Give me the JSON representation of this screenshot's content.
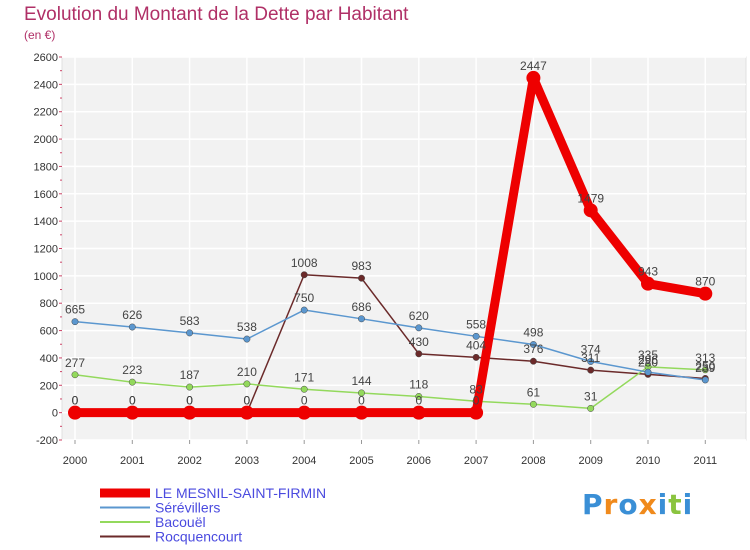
{
  "chart_data": {
    "type": "line",
    "title": "Evolution du Montant de la Dette par Habitant",
    "subtitle": "(en €)",
    "xlabel": "",
    "ylabel": "",
    "x": [
      "2000",
      "2001",
      "2002",
      "2003",
      "2004",
      "2005",
      "2006",
      "2007",
      "2008",
      "2009",
      "2010",
      "2011"
    ],
    "yticks": [
      -200,
      0,
      200,
      400,
      600,
      800,
      1000,
      1200,
      1400,
      1600,
      1800,
      2000,
      2200,
      2400,
      2600
    ],
    "ylim": [
      -200,
      2600
    ],
    "grid": true,
    "legend_position": "bottom-left",
    "series": [
      {
        "name": "LE MESNIL-SAINT-FIRMIN",
        "color": "#ee0000",
        "values": [
          0,
          0,
          0,
          0,
          0,
          0,
          0,
          0,
          2447,
          1479,
          943,
          870
        ]
      },
      {
        "name": "Sérévillers",
        "color": "#5b97cf",
        "values": [
          665,
          626,
          583,
          538,
          750,
          686,
          620,
          558,
          498,
          374,
          296,
          239
        ]
      },
      {
        "name": "Bacouël",
        "color": "#93d95c",
        "values": [
          277,
          223,
          187,
          210,
          171,
          144,
          118,
          83,
          61,
          31,
          335,
          313
        ]
      },
      {
        "name": "Rocquencourt",
        "color": "#6b2a2a",
        "values": [
          0,
          0,
          0,
          0,
          1008,
          983,
          430,
          404,
          376,
          311,
          280,
          250
        ]
      }
    ]
  },
  "logo": {
    "letters": [
      "P",
      "r",
      "o",
      "x",
      "i",
      "t",
      "i"
    ],
    "colors": [
      "#3a8fd6",
      "#f08a1c",
      "#3a8fd6",
      "#f08a1c",
      "#3a8fd6",
      "#8ac43f",
      "#3a8fd6"
    ]
  }
}
